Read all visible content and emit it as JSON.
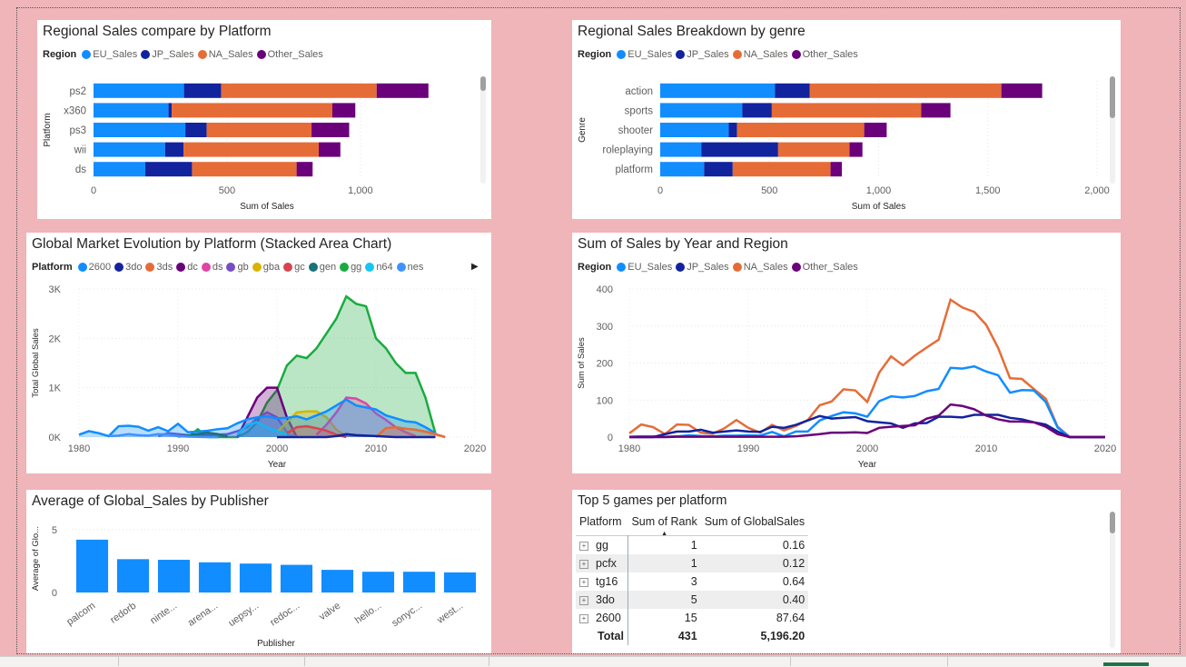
{
  "colors": {
    "EU_Sales": "#118dff",
    "JP_Sales": "#12239e",
    "NA_Sales": "#e66c37",
    "Other_Sales": "#6b007b"
  },
  "panels": {
    "platform_bar": {
      "title": "Regional Sales compare by Platform",
      "legend_title": "Region",
      "legend_items": [
        "EU_Sales",
        "JP_Sales",
        "NA_Sales",
        "Other_Sales"
      ]
    },
    "genre_bar": {
      "title": "Regional Sales Breakdown by genre",
      "legend_title": "Region",
      "legend_items": [
        "EU_Sales",
        "JP_Sales",
        "NA_Sales",
        "Other_Sales"
      ]
    },
    "area": {
      "title": "Global Market Evolution by Platform (Stacked Area Chart)",
      "legend_title": "Platform",
      "legend_items": [
        "2600",
        "3do",
        "3ds",
        "dc",
        "ds",
        "gb",
        "gba",
        "gc",
        "gen",
        "gg",
        "n64",
        "nes"
      ]
    },
    "line": {
      "title": "Sum of Sales by Year and Region",
      "legend_title": "Region",
      "legend_items": [
        "EU_Sales",
        "JP_Sales",
        "NA_Sales",
        "Other_Sales"
      ]
    },
    "publisher": {
      "title": "Average of Global_Sales by Publisher"
    },
    "top5": {
      "title": "Top 5 games per platform",
      "headers": [
        "Platform",
        "Sum of Rank",
        "Sum of GlobalSales"
      ],
      "rows": [
        {
          "platform": "gg",
          "rank": "1",
          "sales": "0.16"
        },
        {
          "platform": "pcfx",
          "rank": "1",
          "sales": "0.12"
        },
        {
          "platform": "tg16",
          "rank": "3",
          "sales": "0.64"
        },
        {
          "platform": "3do",
          "rank": "5",
          "sales": "0.40"
        },
        {
          "platform": "2600",
          "rank": "15",
          "sales": "87.64"
        }
      ],
      "total": {
        "label": "Total",
        "rank": "431",
        "sales": "5,196.20"
      }
    }
  },
  "chart_data": [
    {
      "type": "bar",
      "orientation": "horizontal-stacked",
      "title": "Regional Sales compare by Platform",
      "categories": [
        "ps2",
        "x360",
        "ps3",
        "wii",
        "ds"
      ],
      "series": [
        {
          "name": "EU_Sales",
          "values": [
            339,
            281,
            344,
            268,
            194
          ]
        },
        {
          "name": "JP_Sales",
          "values": [
            139,
            12,
            80,
            69,
            175
          ]
        },
        {
          "name": "NA_Sales",
          "values": [
            583,
            602,
            393,
            507,
            392
          ]
        },
        {
          "name": "Other_Sales",
          "values": [
            194,
            86,
            141,
            81,
            60
          ]
        }
      ],
      "xlabel": "Sum of Sales",
      "ylabel": "Platform",
      "xlim": [
        0,
        1300
      ],
      "xticks": [
        0,
        500,
        1000
      ],
      "xtick_labels": [
        "0",
        "500",
        "1,000"
      ]
    },
    {
      "type": "bar",
      "orientation": "horizontal-stacked",
      "title": "Regional Sales Breakdown by genre",
      "categories": [
        "action",
        "sports",
        "shooter",
        "roleplaying",
        "platform"
      ],
      "series": [
        {
          "name": "EU_Sales",
          "values": [
            525,
            376,
            314,
            188,
            201
          ]
        },
        {
          "name": "JP_Sales",
          "values": [
            160,
            135,
            38,
            352,
            131
          ]
        },
        {
          "name": "NA_Sales",
          "values": [
            877,
            684,
            582,
            327,
            448
          ]
        },
        {
          "name": "Other_Sales",
          "values": [
            187,
            134,
            103,
            59,
            52
          ]
        }
      ],
      "xlabel": "Sum of Sales",
      "ylabel": "Genre",
      "xlim": [
        0,
        2000
      ],
      "xticks": [
        0,
        500,
        1000,
        1500,
        2000
      ],
      "xtick_labels": [
        "0",
        "500",
        "1,000",
        "1,500",
        "2,000"
      ]
    },
    {
      "type": "area",
      "title": "Global Market Evolution by Platform (Stacked Area Chart)",
      "xlabel": "Year",
      "ylabel": "Total Global Sales",
      "xlim": [
        1980,
        2020
      ],
      "ylim": [
        0,
        3000
      ],
      "xticks": [
        1980,
        1990,
        2000,
        2010,
        2020
      ],
      "yticks": [
        0,
        1000,
        2000,
        3000
      ],
      "ytick_labels": [
        "0K",
        "1K",
        "2K",
        "3K"
      ],
      "series": [
        {
          "name": "2600",
          "color": "#118dff",
          "x": [
            1980,
            1981,
            1982,
            1983,
            1984,
            1985,
            1986,
            1987,
            1988,
            1989,
            1990,
            1991,
            1992,
            1993,
            1994,
            1995,
            1996,
            1997,
            1998,
            1999,
            2000,
            2001,
            2002,
            2003,
            2004,
            2005,
            2006,
            2007,
            2008,
            2009,
            2010,
            2011,
            2012,
            2013,
            2014,
            2015,
            2016
          ],
          "y": [
            50,
            120,
            80,
            20,
            220,
            230,
            210,
            130,
            200,
            120,
            270,
            100,
            110,
            130,
            160,
            180,
            280,
            360,
            400,
            420,
            380,
            390,
            420,
            360,
            440,
            520,
            640,
            760,
            640,
            600,
            560,
            440,
            380,
            320,
            300,
            200,
            80
          ]
        },
        {
          "name": "3do",
          "color": "#12239e",
          "x": [
            2000,
            2001,
            2002,
            2003,
            2004,
            2005,
            2006,
            2007,
            2008,
            2009,
            2010,
            2011,
            2012,
            2013,
            2014,
            2015,
            2016
          ],
          "y": [
            0,
            0,
            0,
            0,
            0,
            0,
            20,
            60,
            40,
            30,
            20,
            10,
            0,
            0,
            0,
            0,
            0
          ]
        },
        {
          "name": "3ds",
          "color": "#e66c37",
          "x": [
            2010,
            2011,
            2012,
            2013,
            2014,
            2015,
            2016,
            2017
          ],
          "y": [
            0,
            180,
            200,
            170,
            150,
            110,
            60,
            0
          ]
        },
        {
          "name": "dc",
          "color": "#6b007b",
          "x": [
            1996,
            1997,
            1998,
            1999,
            2000,
            2001,
            2002
          ],
          "y": [
            0,
            400,
            800,
            1000,
            1000,
            400,
            0
          ]
        },
        {
          "name": "ds",
          "color": "#e044a7",
          "x": [
            2004,
            2005,
            2006,
            2007,
            2008,
            2009,
            2010,
            2011,
            2012,
            2013,
            2014
          ],
          "y": [
            50,
            250,
            500,
            800,
            780,
            680,
            480,
            350,
            200,
            100,
            20
          ]
        },
        {
          "name": "gb",
          "color": "#744ec2",
          "x": [
            1988,
            1989,
            1990,
            1991,
            1992,
            1993,
            1994,
            1995,
            1996,
            1997,
            1998,
            1999,
            2000,
            2001
          ],
          "y": [
            20,
            80,
            60,
            40,
            30,
            40,
            50,
            60,
            120,
            200,
            380,
            500,
            400,
            100
          ]
        },
        {
          "name": "gba",
          "color": "#d9b300",
          "x": [
            2000,
            2001,
            2002,
            2003,
            2004,
            2005,
            2006,
            2007
          ],
          "y": [
            100,
            300,
            500,
            520,
            520,
            400,
            150,
            20
          ]
        },
        {
          "name": "gc",
          "color": "#d64550",
          "x": [
            2001,
            2002,
            2003,
            2004,
            2005,
            2006,
            2007
          ],
          "y": [
            80,
            200,
            220,
            180,
            130,
            50,
            0
          ]
        },
        {
          "name": "gen",
          "color": "#197278",
          "x": [
            1990,
            1991,
            1992,
            1993,
            1994,
            1995
          ],
          "y": [
            10,
            30,
            60,
            90,
            60,
            10
          ]
        },
        {
          "name": "gg",
          "color": "#1aab40",
          "x": [
            1991,
            1992,
            1993,
            1994,
            1995,
            1996,
            1997,
            1998,
            1999,
            2000,
            2001,
            2002,
            2003,
            2004,
            2005,
            2006,
            2007,
            2008,
            2009,
            2010,
            2011,
            2012,
            2013,
            2014,
            2015,
            2016
          ],
          "y": [
            0,
            160,
            0,
            0,
            0,
            0,
            100,
            300,
            700,
            950,
            1450,
            1650,
            1600,
            1800,
            2100,
            2400,
            2850,
            2700,
            2650,
            2000,
            1800,
            1500,
            1300,
            1300,
            800,
            80
          ]
        },
        {
          "name": "n64",
          "color": "#15c6f4",
          "x": [
            1996,
            1997,
            1998,
            1999,
            2000,
            2001,
            2002
          ],
          "y": [
            50,
            250,
            300,
            200,
            120,
            60,
            10
          ]
        },
        {
          "name": "nes",
          "color": "#4092ff",
          "x": [
            1983,
            1984,
            1985,
            1986,
            1987,
            1988,
            1989,
            1990,
            1991,
            1992,
            1993,
            1994
          ],
          "y": [
            20,
            30,
            60,
            40,
            30,
            60,
            50,
            20,
            10,
            5,
            0,
            0
          ]
        }
      ]
    },
    {
      "type": "line",
      "title": "Sum of Sales by Year and Region",
      "xlabel": "Year",
      "ylabel": "Sum of Sales",
      "xlim": [
        1980,
        2020
      ],
      "ylim": [
        0,
        400
      ],
      "xticks": [
        1980,
        1990,
        2000,
        2010,
        2020
      ],
      "yticks": [
        0,
        100,
        200,
        300,
        400
      ],
      "x": [
        1980,
        1981,
        1982,
        1983,
        1984,
        1985,
        1986,
        1987,
        1988,
        1989,
        1990,
        1991,
        1992,
        1993,
        1994,
        1995,
        1996,
        1997,
        1998,
        1999,
        2000,
        2001,
        2002,
        2003,
        2004,
        2005,
        2006,
        2007,
        2008,
        2009,
        2010,
        2011,
        2012,
        2013,
        2014,
        2015,
        2016,
        2017,
        2018,
        2019,
        2020
      ],
      "series": [
        {
          "name": "NA_Sales",
          "values": [
            10,
            34,
            27,
            8,
            34,
            33,
            12,
            9,
            24,
            46,
            25,
            12,
            33,
            18,
            30,
            46,
            86,
            96,
            129,
            126,
            95,
            174,
            218,
            194,
            220,
            242,
            263,
            371,
            350,
            338,
            303,
            241,
            159,
            157,
            130,
            104,
            28,
            1,
            0,
            0,
            0
          ]
        },
        {
          "name": "EU_Sales",
          "values": [
            1,
            2,
            2,
            1,
            2,
            5,
            3,
            2,
            4,
            4,
            5,
            4,
            14,
            2,
            15,
            15,
            45,
            57,
            67,
            64,
            55,
            97,
            110,
            107,
            111,
            124,
            130,
            187,
            185,
            191,
            177,
            167,
            120,
            127,
            126,
            95,
            26,
            0,
            0,
            0,
            0
          ]
        },
        {
          "name": "JP_Sales",
          "values": [
            0,
            0,
            0,
            8,
            15,
            15,
            20,
            12,
            15,
            18,
            15,
            14,
            28,
            25,
            33,
            45,
            57,
            50,
            52,
            54,
            43,
            40,
            37,
            25,
            37,
            38,
            55,
            55,
            53,
            60,
            60,
            60,
            52,
            48,
            40,
            34,
            15,
            0,
            0,
            0,
            0
          ]
        },
        {
          "name": "Other_Sales",
          "values": [
            0,
            0,
            0,
            0,
            1,
            1,
            1,
            1,
            1,
            1,
            1,
            1,
            1,
            1,
            2,
            5,
            8,
            12,
            12,
            13,
            11,
            25,
            28,
            30,
            32,
            50,
            58,
            88,
            84,
            75,
            58,
            48,
            42,
            42,
            40,
            28,
            8,
            0,
            0,
            0,
            0
          ]
        }
      ]
    },
    {
      "type": "bar",
      "title": "Average of Global_Sales by Publisher",
      "xlabel": "Publisher",
      "ylabel": "Average of Glo...",
      "ylim": [
        0,
        6
      ],
      "yticks": [
        0,
        5
      ],
      "categories": [
        "palcom",
        "redorb",
        "ninte...",
        "arena...",
        "uepsy...",
        "redoc...",
        "valve",
        "hello...",
        "sonyc...",
        "west..."
      ],
      "values": [
        4.2,
        2.65,
        2.6,
        2.4,
        2.3,
        2.2,
        1.8,
        1.65,
        1.65,
        1.6
      ]
    }
  ]
}
